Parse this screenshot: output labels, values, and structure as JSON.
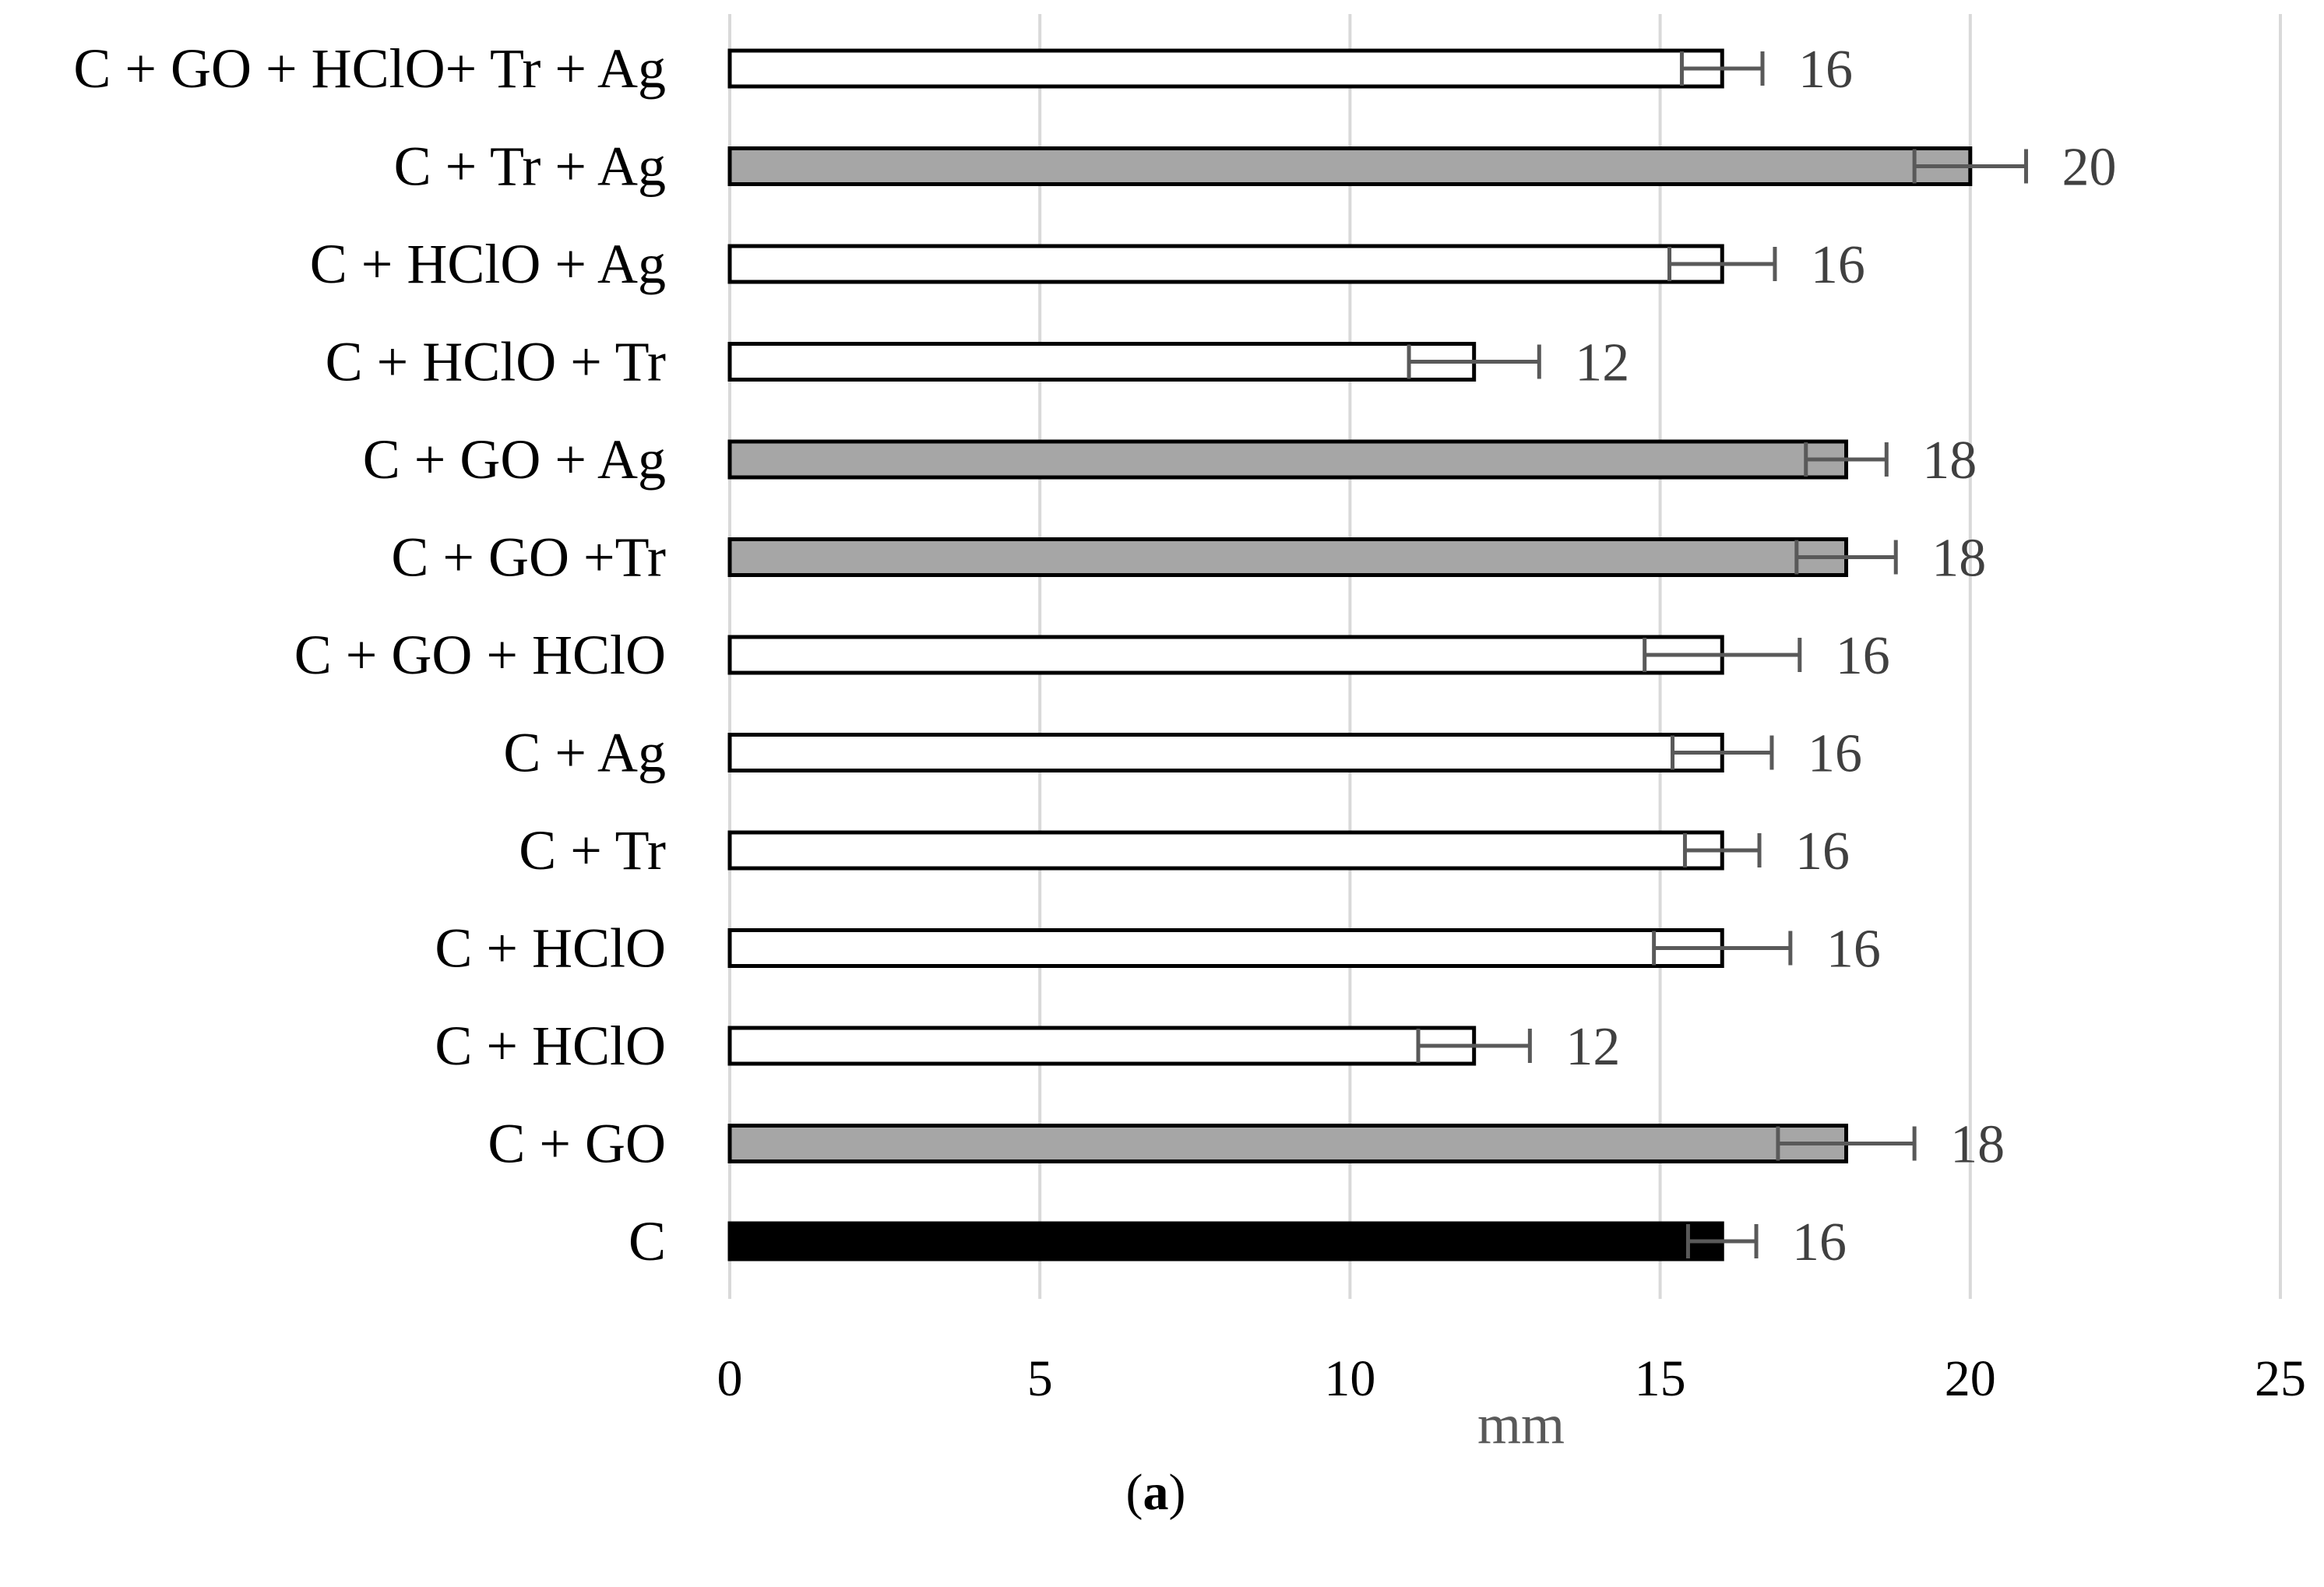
{
  "chart_data": {
    "type": "bar",
    "orientation": "horizontal",
    "categories": [
      "C + GO + HClO+ Tr + Ag",
      "C + Tr + Ag",
      "C + HClO + Ag",
      "C + HClO + Tr",
      "C + GO + Ag",
      "C + GO +Tr",
      "C + GO + HClO",
      "C + Ag",
      "C + Tr",
      "C + HClO",
      "C + HClO",
      "C + GO",
      "C"
    ],
    "values": [
      16,
      20,
      16,
      12,
      18,
      18,
      16,
      16,
      16,
      16,
      12,
      18,
      16
    ],
    "errors": [
      0.65,
      0.9,
      0.85,
      1.05,
      0.65,
      0.8,
      1.25,
      0.8,
      0.6,
      1.1,
      0.9,
      1.1,
      0.55
    ],
    "data_labels": [
      "16",
      "20",
      "16",
      "12",
      "18",
      "18",
      "16",
      "16",
      "16",
      "16",
      "12",
      "18",
      "16"
    ],
    "bar_fills": [
      "white",
      "gray",
      "white",
      "white",
      "gray",
      "gray",
      "white",
      "white",
      "white",
      "white",
      "white",
      "gray",
      "black"
    ],
    "colors": {
      "white": "#ffffff",
      "gray": "#a6a6a6",
      "black": "#000000",
      "bar_edge": "#000000",
      "error_bar": "#595959",
      "gridline": "#d9d9d9"
    },
    "xlim": [
      0,
      25
    ],
    "xticks": [
      "0",
      "5",
      "10",
      "15",
      "20",
      "25"
    ],
    "xlabel": "mm",
    "ylabel": "",
    "title": "",
    "grid": true,
    "legend": "none"
  },
  "panel_label": {
    "open": "(",
    "letter": "a",
    "close": ")"
  }
}
